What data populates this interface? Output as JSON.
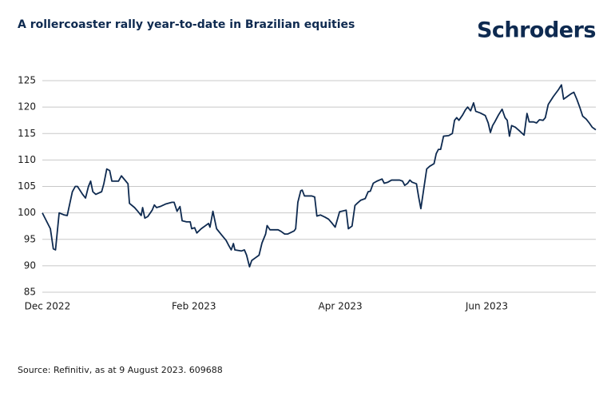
{
  "brand": "Schroders",
  "chart_data": {
    "type": "line",
    "title": "A rollercoaster rally year-to-date in Brazilian equities",
    "source": "Source: Refinitiv, as at 9 August 2023. 609688",
    "x": [
      -0.07,
      0.04,
      0.08,
      0.11,
      0.16,
      0.23,
      0.27,
      0.34,
      0.38,
      0.41,
      0.48,
      0.52,
      0.56,
      0.59,
      0.62,
      0.66,
      0.74,
      0.77,
      0.81,
      0.85,
      0.88,
      0.97,
      1.01,
      1.07,
      1.1,
      1.12,
      1.19,
      1.24,
      1.28,
      1.3,
      1.33,
      1.37,
      1.43,
      1.46,
      1.49,
      1.54,
      1.62,
      1.7,
      1.73,
      1.77,
      1.81,
      1.84,
      1.9,
      1.95,
      1.97,
      2.01,
      2.04,
      2.1,
      2.15,
      2.2,
      2.22,
      2.26,
      2.31,
      2.38,
      2.44,
      2.47,
      2.51,
      2.54,
      2.56,
      2.65,
      2.69,
      2.72,
      2.76,
      2.79,
      2.84,
      2.89,
      2.93,
      2.98,
      3.0,
      3.04,
      3.15,
      3.19,
      3.24,
      3.28,
      3.37,
      3.39,
      3.42,
      3.46,
      3.48,
      3.51,
      3.61,
      3.65,
      3.68,
      3.73,
      3.79,
      3.84,
      3.89,
      3.93,
      3.99,
      4.08,
      4.11,
      4.16,
      4.2,
      4.23,
      4.28,
      4.34,
      4.38,
      4.41,
      4.45,
      4.5,
      4.57,
      4.6,
      4.65,
      4.7,
      4.76,
      4.81,
      4.85,
      4.88,
      4.92,
      4.95,
      4.98,
      5.04,
      5.07,
      5.1,
      5.18,
      5.22,
      5.28,
      5.31,
      5.34,
      5.37,
      5.41,
      5.48,
      5.53,
      5.56,
      5.59,
      5.62,
      5.67,
      5.71,
      5.74,
      5.78,
      5.82,
      5.85,
      5.91,
      5.98,
      6.02,
      6.05,
      6.08,
      6.11,
      6.16,
      6.21,
      6.25,
      6.28,
      6.31,
      6.34,
      6.39,
      6.44,
      6.51,
      6.55,
      6.58,
      6.64,
      6.68,
      6.72,
      6.77,
      6.8,
      6.84,
      6.91,
      6.98,
      7.02,
      7.05,
      7.1,
      7.15,
      7.19,
      7.23,
      7.27,
      7.31,
      7.36,
      7.4,
      7.44,
      7.49
    ],
    "values": [
      100,
      97,
      93.2,
      93,
      100,
      99.6,
      99.5,
      104,
      105,
      105,
      103.5,
      102.8,
      105,
      106,
      104,
      103.5,
      104,
      105.5,
      108.3,
      108,
      106,
      106,
      107,
      106,
      105.5,
      101.8,
      101,
      100.2,
      99.5,
      101,
      99,
      99.3,
      100.5,
      101.5,
      101,
      101.2,
      101.7,
      102,
      102,
      100.3,
      101.2,
      98.5,
      98.3,
      98.3,
      97,
      97.2,
      96.2,
      97,
      97.5,
      98,
      97.3,
      100.3,
      97,
      95.8,
      94.8,
      94,
      93,
      94.2,
      93,
      92.8,
      93,
      92,
      89.8,
      91,
      91.5,
      92,
      94.3,
      96,
      97.6,
      96.8,
      96.8,
      96.5,
      96,
      96,
      96.6,
      97,
      102,
      104.2,
      104.3,
      103.2,
      103.2,
      103,
      99.4,
      99.6,
      99.2,
      98.8,
      98,
      97.3,
      100.2,
      100.5,
      97,
      97.5,
      101.4,
      101.8,
      102.4,
      102.7,
      104,
      104.1,
      105.6,
      106,
      106.4,
      105.6,
      105.8,
      106.2,
      106.2,
      106.2,
      106,
      105.2,
      105.6,
      106.2,
      105.8,
      105.5,
      103,
      100.8,
      108.3,
      108.8,
      109.3,
      111.2,
      112,
      112,
      114.5,
      114.6,
      115,
      117.5,
      118,
      117.5,
      118.5,
      119.5,
      120,
      119.3,
      120.8,
      119.2,
      118.9,
      118.4,
      117,
      115.2,
      116.5,
      117.2,
      118.5,
      119.6,
      118,
      117.5,
      114.5,
      116.5,
      116.2,
      115.6,
      114.7,
      118.8,
      117.2,
      117.2,
      117,
      117.6,
      117.5,
      118,
      120.5,
      122,
      123.3,
      124.2,
      121.5,
      122,
      122.5,
      122.8,
      121.5,
      120,
      118.3,
      117.7,
      117,
      116.2,
      115.7
    ],
    "color": "#0e2a50",
    "xlim": [
      -0.07,
      7.49
    ],
    "xticks": [
      {
        "value": 0,
        "label": "Dec 2022"
      },
      {
        "value": 2,
        "label": "Feb 2023"
      },
      {
        "value": 4,
        "label": "Apr 2023"
      },
      {
        "value": 6,
        "label": "Jun 2023"
      }
    ],
    "ylim": [
      85,
      125
    ],
    "yticks": [
      85,
      90,
      95,
      100,
      105,
      110,
      115,
      120,
      125
    ],
    "grid": true
  }
}
